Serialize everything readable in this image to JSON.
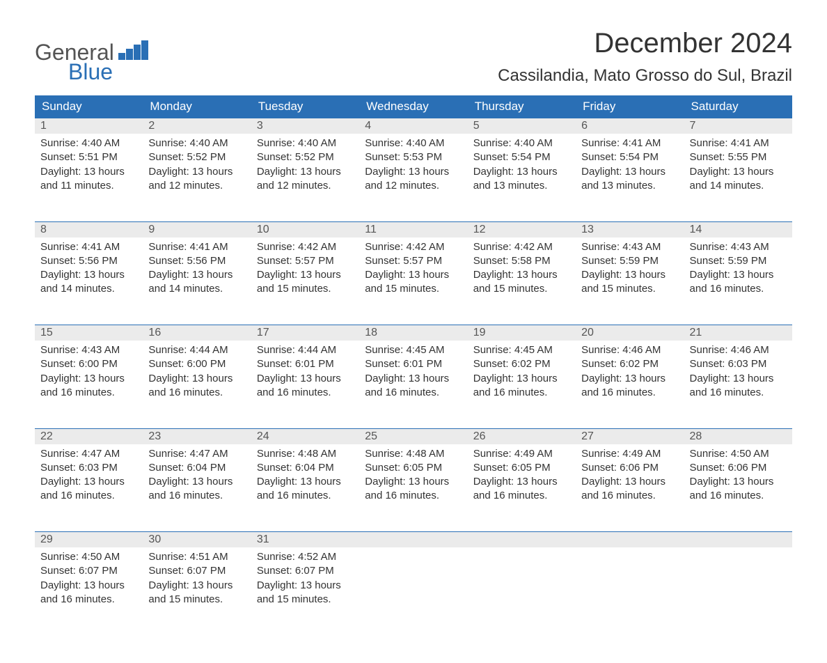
{
  "logo": {
    "text_general": "General",
    "text_blue": "Blue"
  },
  "title": "December 2024",
  "location": "Cassilandia, Mato Grosso do Sul, Brazil",
  "colors": {
    "header_bg": "#2a6fb5",
    "header_text": "#ffffff",
    "daynum_bg": "#ebebeb",
    "daynum_text": "#555555",
    "body_text": "#333333",
    "row_border": "#2a6fb5",
    "page_bg": "#ffffff"
  },
  "typography": {
    "title_fontsize": 40,
    "location_fontsize": 24,
    "dayheader_fontsize": 17,
    "body_fontsize": 15
  },
  "day_headers": [
    "Sunday",
    "Monday",
    "Tuesday",
    "Wednesday",
    "Thursday",
    "Friday",
    "Saturday"
  ],
  "weeks": [
    [
      {
        "num": "1",
        "sunrise": "Sunrise: 4:40 AM",
        "sunset": "Sunset: 5:51 PM",
        "daylight": "Daylight: 13 hours and 11 minutes."
      },
      {
        "num": "2",
        "sunrise": "Sunrise: 4:40 AM",
        "sunset": "Sunset: 5:52 PM",
        "daylight": "Daylight: 13 hours and 12 minutes."
      },
      {
        "num": "3",
        "sunrise": "Sunrise: 4:40 AM",
        "sunset": "Sunset: 5:52 PM",
        "daylight": "Daylight: 13 hours and 12 minutes."
      },
      {
        "num": "4",
        "sunrise": "Sunrise: 4:40 AM",
        "sunset": "Sunset: 5:53 PM",
        "daylight": "Daylight: 13 hours and 12 minutes."
      },
      {
        "num": "5",
        "sunrise": "Sunrise: 4:40 AM",
        "sunset": "Sunset: 5:54 PM",
        "daylight": "Daylight: 13 hours and 13 minutes."
      },
      {
        "num": "6",
        "sunrise": "Sunrise: 4:41 AM",
        "sunset": "Sunset: 5:54 PM",
        "daylight": "Daylight: 13 hours and 13 minutes."
      },
      {
        "num": "7",
        "sunrise": "Sunrise: 4:41 AM",
        "sunset": "Sunset: 5:55 PM",
        "daylight": "Daylight: 13 hours and 14 minutes."
      }
    ],
    [
      {
        "num": "8",
        "sunrise": "Sunrise: 4:41 AM",
        "sunset": "Sunset: 5:56 PM",
        "daylight": "Daylight: 13 hours and 14 minutes."
      },
      {
        "num": "9",
        "sunrise": "Sunrise: 4:41 AM",
        "sunset": "Sunset: 5:56 PM",
        "daylight": "Daylight: 13 hours and 14 minutes."
      },
      {
        "num": "10",
        "sunrise": "Sunrise: 4:42 AM",
        "sunset": "Sunset: 5:57 PM",
        "daylight": "Daylight: 13 hours and 15 minutes."
      },
      {
        "num": "11",
        "sunrise": "Sunrise: 4:42 AM",
        "sunset": "Sunset: 5:57 PM",
        "daylight": "Daylight: 13 hours and 15 minutes."
      },
      {
        "num": "12",
        "sunrise": "Sunrise: 4:42 AM",
        "sunset": "Sunset: 5:58 PM",
        "daylight": "Daylight: 13 hours and 15 minutes."
      },
      {
        "num": "13",
        "sunrise": "Sunrise: 4:43 AM",
        "sunset": "Sunset: 5:59 PM",
        "daylight": "Daylight: 13 hours and 15 minutes."
      },
      {
        "num": "14",
        "sunrise": "Sunrise: 4:43 AM",
        "sunset": "Sunset: 5:59 PM",
        "daylight": "Daylight: 13 hours and 16 minutes."
      }
    ],
    [
      {
        "num": "15",
        "sunrise": "Sunrise: 4:43 AM",
        "sunset": "Sunset: 6:00 PM",
        "daylight": "Daylight: 13 hours and 16 minutes."
      },
      {
        "num": "16",
        "sunrise": "Sunrise: 4:44 AM",
        "sunset": "Sunset: 6:00 PM",
        "daylight": "Daylight: 13 hours and 16 minutes."
      },
      {
        "num": "17",
        "sunrise": "Sunrise: 4:44 AM",
        "sunset": "Sunset: 6:01 PM",
        "daylight": "Daylight: 13 hours and 16 minutes."
      },
      {
        "num": "18",
        "sunrise": "Sunrise: 4:45 AM",
        "sunset": "Sunset: 6:01 PM",
        "daylight": "Daylight: 13 hours and 16 minutes."
      },
      {
        "num": "19",
        "sunrise": "Sunrise: 4:45 AM",
        "sunset": "Sunset: 6:02 PM",
        "daylight": "Daylight: 13 hours and 16 minutes."
      },
      {
        "num": "20",
        "sunrise": "Sunrise: 4:46 AM",
        "sunset": "Sunset: 6:02 PM",
        "daylight": "Daylight: 13 hours and 16 minutes."
      },
      {
        "num": "21",
        "sunrise": "Sunrise: 4:46 AM",
        "sunset": "Sunset: 6:03 PM",
        "daylight": "Daylight: 13 hours and 16 minutes."
      }
    ],
    [
      {
        "num": "22",
        "sunrise": "Sunrise: 4:47 AM",
        "sunset": "Sunset: 6:03 PM",
        "daylight": "Daylight: 13 hours and 16 minutes."
      },
      {
        "num": "23",
        "sunrise": "Sunrise: 4:47 AM",
        "sunset": "Sunset: 6:04 PM",
        "daylight": "Daylight: 13 hours and 16 minutes."
      },
      {
        "num": "24",
        "sunrise": "Sunrise: 4:48 AM",
        "sunset": "Sunset: 6:04 PM",
        "daylight": "Daylight: 13 hours and 16 minutes."
      },
      {
        "num": "25",
        "sunrise": "Sunrise: 4:48 AM",
        "sunset": "Sunset: 6:05 PM",
        "daylight": "Daylight: 13 hours and 16 minutes."
      },
      {
        "num": "26",
        "sunrise": "Sunrise: 4:49 AM",
        "sunset": "Sunset: 6:05 PM",
        "daylight": "Daylight: 13 hours and 16 minutes."
      },
      {
        "num": "27",
        "sunrise": "Sunrise: 4:49 AM",
        "sunset": "Sunset: 6:06 PM",
        "daylight": "Daylight: 13 hours and 16 minutes."
      },
      {
        "num": "28",
        "sunrise": "Sunrise: 4:50 AM",
        "sunset": "Sunset: 6:06 PM",
        "daylight": "Daylight: 13 hours and 16 minutes."
      }
    ],
    [
      {
        "num": "29",
        "sunrise": "Sunrise: 4:50 AM",
        "sunset": "Sunset: 6:07 PM",
        "daylight": "Daylight: 13 hours and 16 minutes."
      },
      {
        "num": "30",
        "sunrise": "Sunrise: 4:51 AM",
        "sunset": "Sunset: 6:07 PM",
        "daylight": "Daylight: 13 hours and 15 minutes."
      },
      {
        "num": "31",
        "sunrise": "Sunrise: 4:52 AM",
        "sunset": "Sunset: 6:07 PM",
        "daylight": "Daylight: 13 hours and 15 minutes."
      },
      null,
      null,
      null,
      null
    ]
  ]
}
